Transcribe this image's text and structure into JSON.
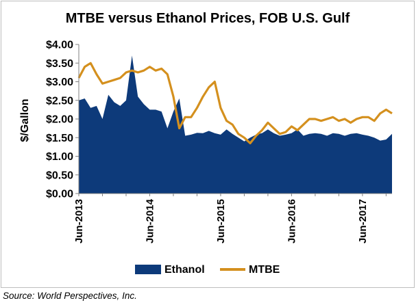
{
  "chart_data": {
    "type": "area",
    "title": "MTBE versus Ethanol Prices, FOB U.S. Gulf",
    "xlabel": "",
    "ylabel": "$/Gallon",
    "ylim": [
      0,
      4
    ],
    "yticks": [
      "$0.00",
      "$0.50",
      "$1.00",
      "$1.50",
      "$2.00",
      "$2.50",
      "$3.00",
      "$3.50",
      "$4.00"
    ],
    "xticks": [
      "Jun-2013",
      "Jun-2014",
      "Jun-2015",
      "Jun-2016",
      "Jun-2017"
    ],
    "xlim": [
      "2013-06",
      "2017-11"
    ],
    "grid": false,
    "legend_position": "bottom",
    "series": [
      {
        "name": "Ethanol",
        "kind": "area",
        "color": "#0d3a7a",
        "x": [
          "2013-06",
          "2013-07",
          "2013-08",
          "2013-09",
          "2013-10",
          "2013-11",
          "2013-12",
          "2014-01",
          "2014-02",
          "2014-03",
          "2014-04",
          "2014-05",
          "2014-06",
          "2014-07",
          "2014-08",
          "2014-09",
          "2014-10",
          "2014-11",
          "2014-12",
          "2015-01",
          "2015-02",
          "2015-03",
          "2015-04",
          "2015-05",
          "2015-06",
          "2015-07",
          "2015-08",
          "2015-09",
          "2015-10",
          "2015-11",
          "2015-12",
          "2016-01",
          "2016-02",
          "2016-03",
          "2016-04",
          "2016-05",
          "2016-06",
          "2016-07",
          "2016-08",
          "2016-09",
          "2016-10",
          "2016-11",
          "2016-12",
          "2017-01",
          "2017-02",
          "2017-03",
          "2017-04",
          "2017-05",
          "2017-06",
          "2017-07",
          "2017-08",
          "2017-09",
          "2017-10",
          "2017-11"
        ],
        "values": [
          2.5,
          2.55,
          2.3,
          2.35,
          2.0,
          2.65,
          2.45,
          2.35,
          2.5,
          3.7,
          2.6,
          2.4,
          2.25,
          2.25,
          2.2,
          1.75,
          2.2,
          2.55,
          1.55,
          1.58,
          1.63,
          1.62,
          1.68,
          1.62,
          1.58,
          1.72,
          1.6,
          1.5,
          1.4,
          1.5,
          1.58,
          1.62,
          1.72,
          1.62,
          1.55,
          1.58,
          1.62,
          1.72,
          1.55,
          1.6,
          1.62,
          1.6,
          1.55,
          1.62,
          1.6,
          1.55,
          1.6,
          1.62,
          1.58,
          1.55,
          1.5,
          1.42,
          1.45,
          1.6
        ]
      },
      {
        "name": "MTBE",
        "kind": "line",
        "color": "#d4901e",
        "x": [
          "2013-06",
          "2013-07",
          "2013-08",
          "2013-09",
          "2013-10",
          "2013-11",
          "2013-12",
          "2014-01",
          "2014-02",
          "2014-03",
          "2014-04",
          "2014-05",
          "2014-06",
          "2014-07",
          "2014-08",
          "2014-09",
          "2014-10",
          "2014-11",
          "2014-12",
          "2015-01",
          "2015-02",
          "2015-03",
          "2015-04",
          "2015-05",
          "2015-06",
          "2015-07",
          "2015-08",
          "2015-09",
          "2015-10",
          "2015-11",
          "2015-12",
          "2016-01",
          "2016-02",
          "2016-03",
          "2016-04",
          "2016-05",
          "2016-06",
          "2016-07",
          "2016-08",
          "2016-09",
          "2016-10",
          "2016-11",
          "2016-12",
          "2017-01",
          "2017-02",
          "2017-03",
          "2017-04",
          "2017-05",
          "2017-06",
          "2017-07",
          "2017-08",
          "2017-09",
          "2017-10",
          "2017-11"
        ],
        "values": [
          3.1,
          3.4,
          3.5,
          3.2,
          2.95,
          3.0,
          3.05,
          3.1,
          3.25,
          3.3,
          3.25,
          3.3,
          3.4,
          3.3,
          3.35,
          3.2,
          2.6,
          1.75,
          2.05,
          2.05,
          2.3,
          2.6,
          2.85,
          3.0,
          2.3,
          1.95,
          1.85,
          1.6,
          1.5,
          1.35,
          1.55,
          1.7,
          1.9,
          1.75,
          1.6,
          1.65,
          1.8,
          1.7,
          1.85,
          2.0,
          2.0,
          1.95,
          2.0,
          2.05,
          1.95,
          2.0,
          1.9,
          2.0,
          2.05,
          2.05,
          1.95,
          2.15,
          2.25,
          2.15
        ]
      }
    ]
  },
  "source": "Source: World Perspectives, Inc."
}
